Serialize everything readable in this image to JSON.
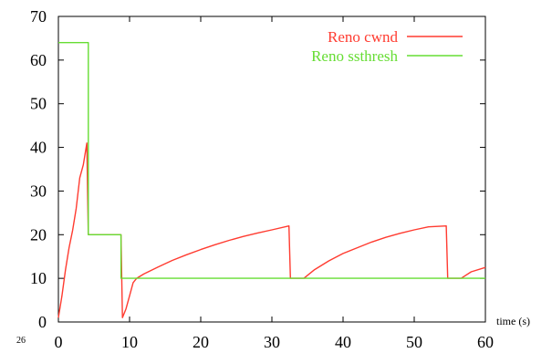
{
  "chart_data": {
    "type": "line",
    "xlabel": "time (s)",
    "ylabel": "",
    "xlim": [
      0,
      60
    ],
    "ylim": [
      0,
      70
    ],
    "xticks": [
      0,
      10,
      20,
      30,
      40,
      50,
      60
    ],
    "yticks": [
      0,
      10,
      20,
      30,
      40,
      50,
      60,
      70
    ],
    "grid": false,
    "legend_position": "top-right",
    "corner_note": "26",
    "series": [
      {
        "name": "Reno cwnd",
        "color": "#ff3b30",
        "x": [
          0,
          0.5,
          1,
          1.5,
          2,
          2.5,
          3,
          3.5,
          4,
          4.1,
          4.2,
          8.8,
          9.0,
          9.5,
          10.0,
          10.5,
          11.0,
          12.0,
          14,
          16,
          18,
          20,
          22,
          24,
          26,
          28,
          30,
          32.4,
          32.6,
          34.5,
          36,
          38,
          40,
          42,
          44,
          46,
          48,
          50,
          52,
          54.5,
          54.7,
          56.6,
          58,
          60
        ],
        "y": [
          1,
          6,
          12,
          17,
          21,
          26,
          33,
          36,
          41,
          30,
          20,
          20,
          1,
          3,
          6,
          9,
          10,
          11,
          12.6,
          14.1,
          15.4,
          16.6,
          17.7,
          18.7,
          19.6,
          20.4,
          21.1,
          22,
          10,
          10,
          12,
          14,
          15.7,
          17,
          18.3,
          19.4,
          20.3,
          21.1,
          21.8,
          22,
          10,
          10,
          11.5,
          12.5
        ]
      },
      {
        "name": "Reno ssthresh",
        "color": "#66dd33",
        "x": [
          0,
          4.2,
          4.2,
          8.8,
          8.8,
          32.5,
          32.5,
          54.6,
          54.6,
          60
        ],
        "y": [
          64,
          64,
          20,
          20,
          10,
          10,
          10,
          10,
          10,
          10
        ]
      }
    ]
  }
}
